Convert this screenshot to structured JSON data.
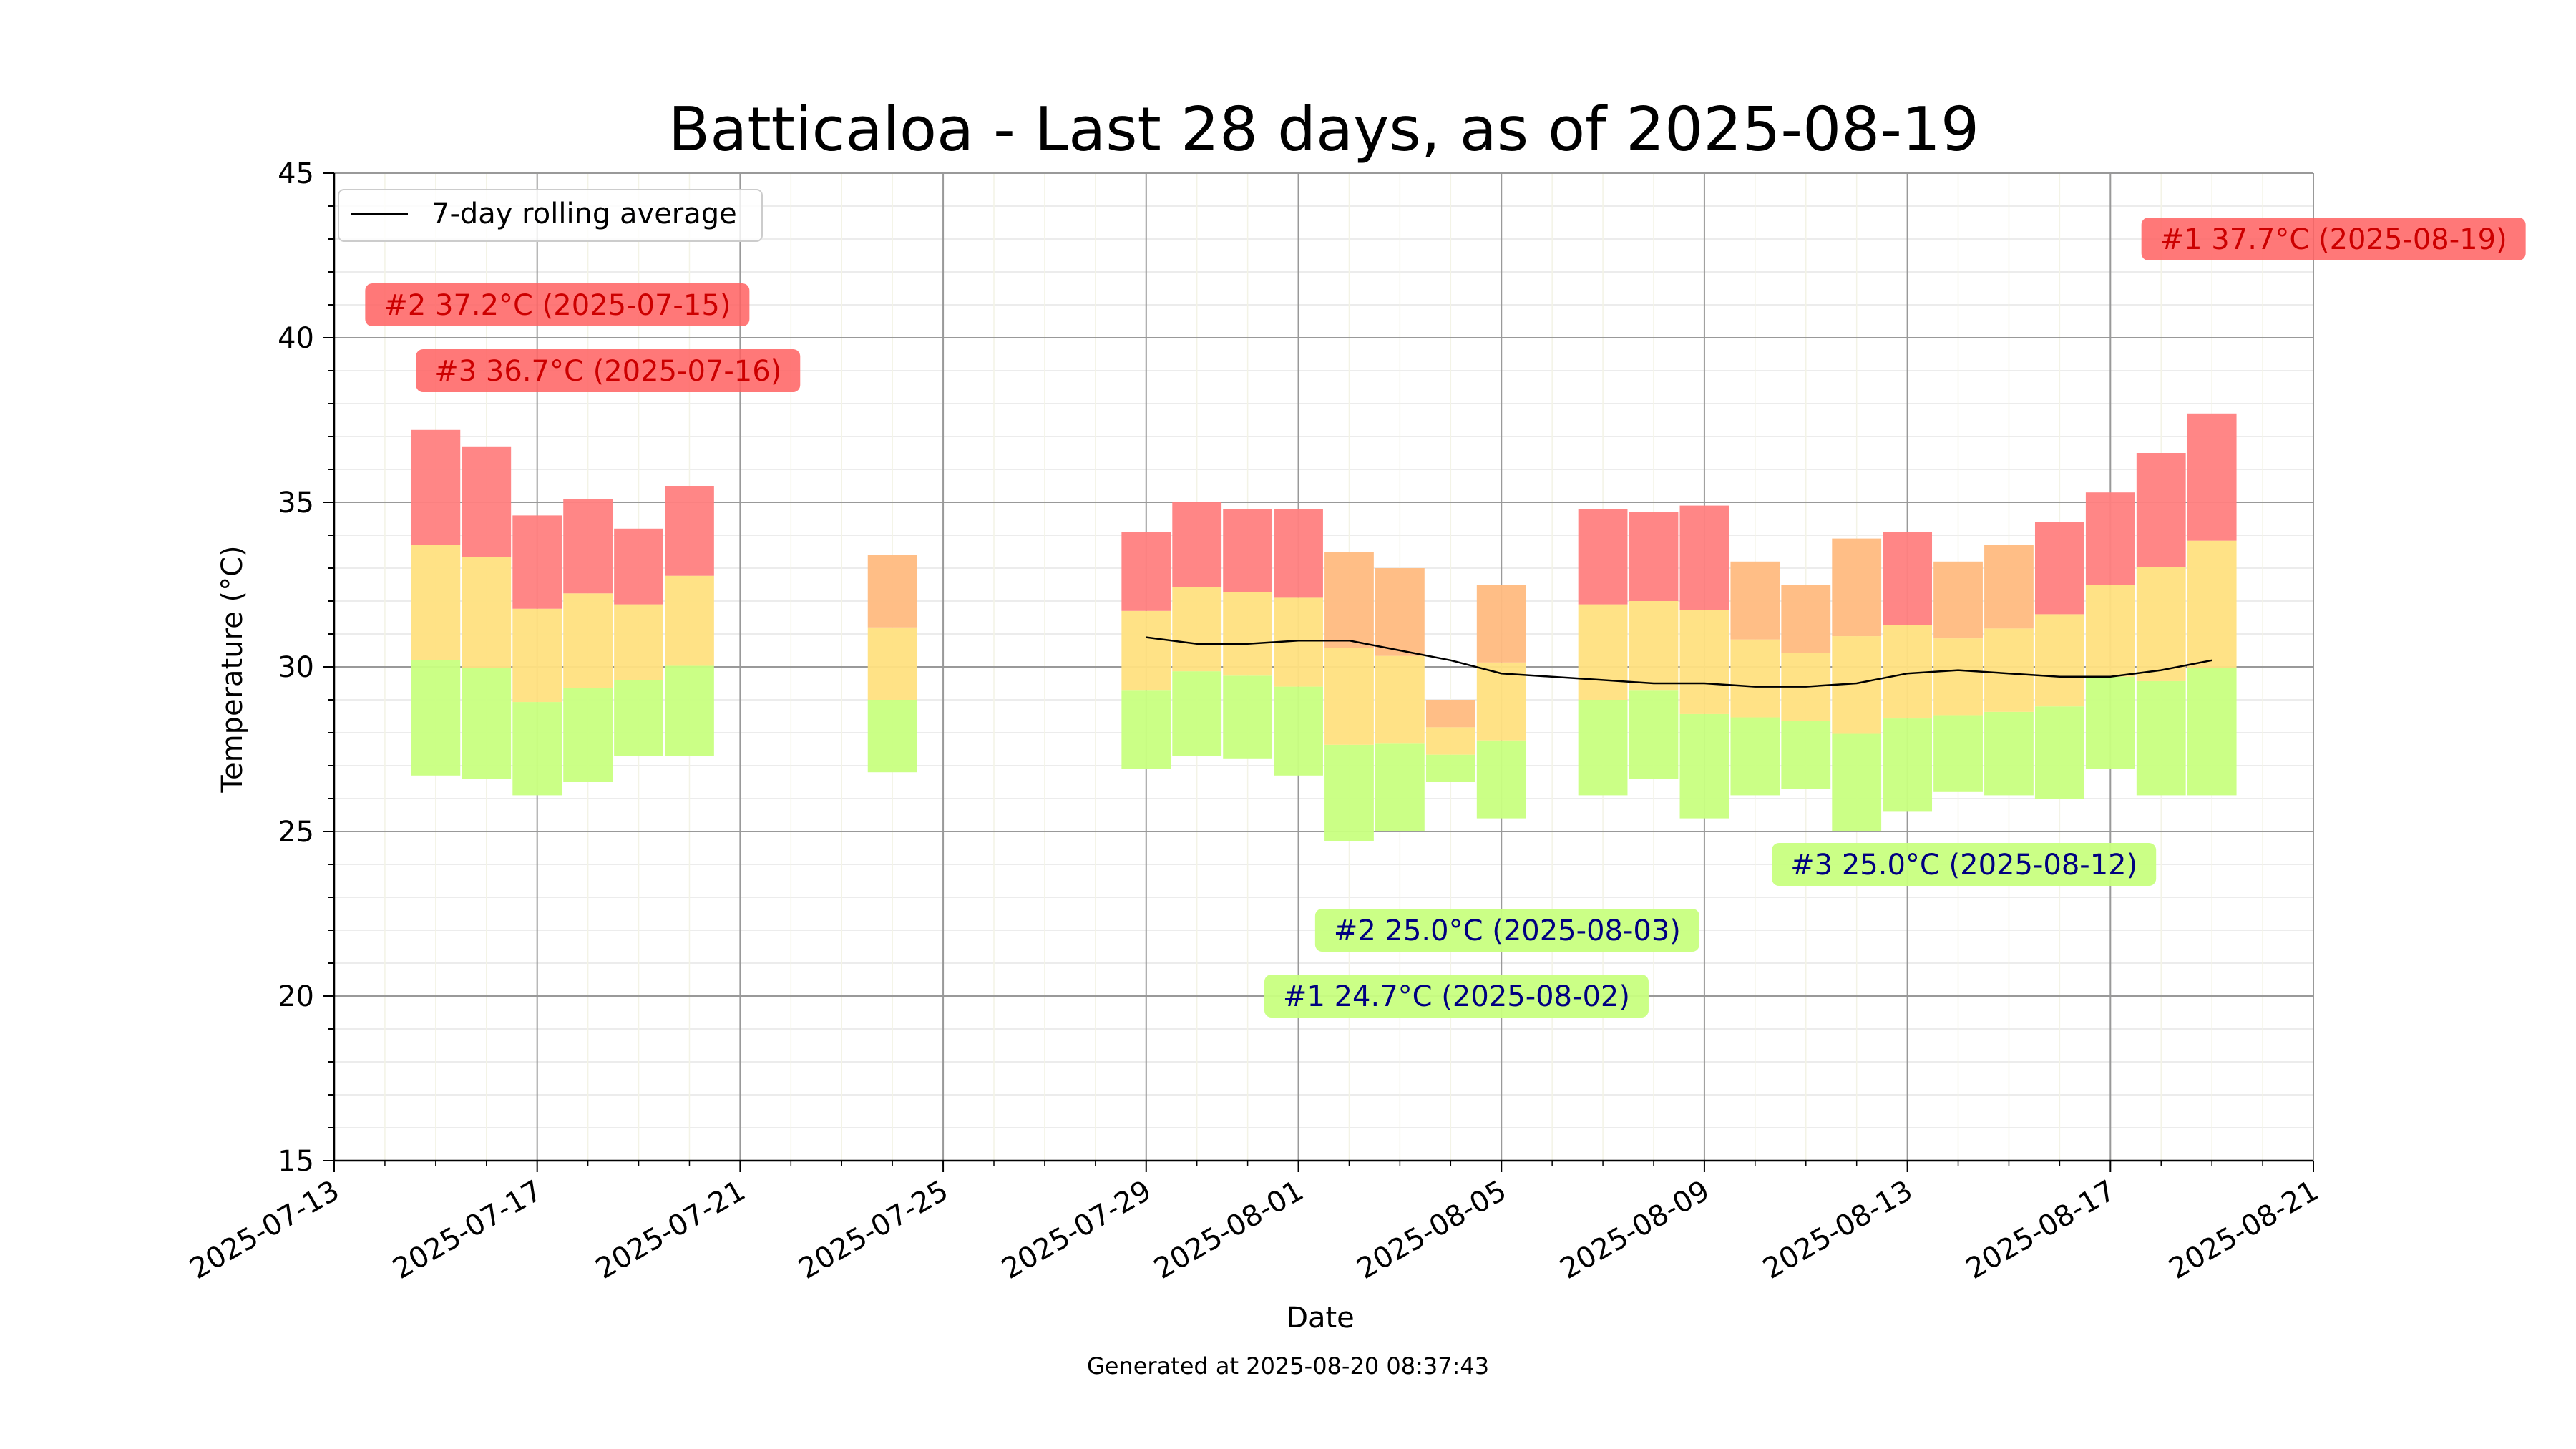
{
  "chart_data": {
    "type": "bar",
    "title": "Batticaloa - Last 28 days, as of 2025-08-19",
    "xlabel": "Date",
    "ylabel": "Temperature (°C)",
    "footer": "Generated at 2025-08-20 08:37:43",
    "x_range": [
      "2025-07-13",
      "2025-08-21"
    ],
    "ylim": [
      15,
      45
    ],
    "y_ticks": [
      "15",
      "20",
      "25",
      "30",
      "35",
      "40",
      "45"
    ],
    "x_ticks": [
      "2025-07-13",
      "2025-07-17",
      "2025-07-21",
      "2025-07-25",
      "2025-07-29",
      "2025-08-01",
      "2025-08-05",
      "2025-08-09",
      "2025-08-13",
      "2025-08-17",
      "2025-08-21"
    ],
    "grid": true,
    "legend": {
      "position": "top-left",
      "entries": [
        "7-day rolling average"
      ]
    },
    "colors": {
      "hot": "#ff8080",
      "warm": "#ffbb80",
      "mild": "#ffe080",
      "cool": "#eeff80",
      "cold": "#c8ff80",
      "avg_line": "#000000",
      "max_label_text": "#cc0000",
      "min_label_text": "#000080"
    },
    "days": [
      {
        "date": "2025-07-15",
        "min": 26.7,
        "max": 37.2
      },
      {
        "date": "2025-07-16",
        "min": 26.6,
        "max": 36.7
      },
      {
        "date": "2025-07-17",
        "min": 26.1,
        "max": 34.6
      },
      {
        "date": "2025-07-18",
        "min": 26.5,
        "max": 35.1
      },
      {
        "date": "2025-07-19",
        "min": 27.3,
        "max": 34.2
      },
      {
        "date": "2025-07-20",
        "min": 27.3,
        "max": 35.5
      },
      {
        "date": "2025-07-24",
        "min": 26.8,
        "max": 33.4
      },
      {
        "date": "2025-07-29",
        "min": 26.9,
        "max": 34.1
      },
      {
        "date": "2025-07-30",
        "min": 27.3,
        "max": 35.0
      },
      {
        "date": "2025-07-31",
        "min": 27.2,
        "max": 34.8
      },
      {
        "date": "2025-08-01",
        "min": 26.7,
        "max": 34.8
      },
      {
        "date": "2025-08-02",
        "min": 24.7,
        "max": 33.5
      },
      {
        "date": "2025-08-03",
        "min": 25.0,
        "max": 33.0
      },
      {
        "date": "2025-08-04",
        "min": 26.5,
        "max": 29.0
      },
      {
        "date": "2025-08-05",
        "min": 25.4,
        "max": 32.5
      },
      {
        "date": "2025-08-07",
        "min": 26.1,
        "max": 34.8
      },
      {
        "date": "2025-08-08",
        "min": 26.6,
        "max": 34.7
      },
      {
        "date": "2025-08-09",
        "min": 25.4,
        "max": 34.9
      },
      {
        "date": "2025-08-10",
        "min": 26.1,
        "max": 33.2
      },
      {
        "date": "2025-08-11",
        "min": 26.3,
        "max": 32.5
      },
      {
        "date": "2025-08-12",
        "min": 25.0,
        "max": 33.9
      },
      {
        "date": "2025-08-13",
        "min": 25.6,
        "max": 34.1
      },
      {
        "date": "2025-08-14",
        "min": 26.2,
        "max": 33.2
      },
      {
        "date": "2025-08-15",
        "min": 26.1,
        "max": 33.7
      },
      {
        "date": "2025-08-16",
        "min": 26.0,
        "max": 34.4
      },
      {
        "date": "2025-08-17",
        "min": 26.9,
        "max": 35.3
      },
      {
        "date": "2025-08-18",
        "min": 26.1,
        "max": 36.5
      },
      {
        "date": "2025-08-19",
        "min": 26.1,
        "max": 37.7
      }
    ],
    "rolling_average": [
      {
        "date": "2025-07-29",
        "value": 30.9
      },
      {
        "date": "2025-07-30",
        "value": 30.7
      },
      {
        "date": "2025-07-31",
        "value": 30.7
      },
      {
        "date": "2025-08-01",
        "value": 30.8
      },
      {
        "date": "2025-08-02",
        "value": 30.8
      },
      {
        "date": "2025-08-03",
        "value": 30.5
      },
      {
        "date": "2025-08-04",
        "value": 30.2
      },
      {
        "date": "2025-08-05",
        "value": 29.8
      },
      {
        "date": "2025-08-07",
        "value": 29.6
      },
      {
        "date": "2025-08-08",
        "value": 29.5
      },
      {
        "date": "2025-08-09",
        "value": 29.5
      },
      {
        "date": "2025-08-10",
        "value": 29.4
      },
      {
        "date": "2025-08-11",
        "value": 29.4
      },
      {
        "date": "2025-08-12",
        "value": 29.5
      },
      {
        "date": "2025-08-13",
        "value": 29.8
      },
      {
        "date": "2025-08-14",
        "value": 29.9
      },
      {
        "date": "2025-08-15",
        "value": 29.8
      },
      {
        "date": "2025-08-16",
        "value": 29.7
      },
      {
        "date": "2025-08-17",
        "value": 29.7
      },
      {
        "date": "2025-08-18",
        "value": 29.9
      },
      {
        "date": "2025-08-19",
        "value": 30.2
      }
    ],
    "annotations": [
      {
        "text": "#2 37.2°C (2025-07-15)",
        "kind": "max",
        "date": "2025-07-15",
        "y": 41.0
      },
      {
        "text": "#3 36.7°C (2025-07-16)",
        "kind": "max",
        "date": "2025-07-16",
        "y": 39.0
      },
      {
        "text": "#1 37.7°C (2025-08-19)",
        "kind": "max",
        "date": "2025-08-19",
        "y": 43.0
      },
      {
        "text": "#2 25.0°C (2025-08-03)",
        "kind": "min",
        "date": "2025-08-03",
        "y": 22.0
      },
      {
        "text": "#1 24.7°C (2025-08-02)",
        "kind": "min",
        "date": "2025-08-02",
        "y": 20.0
      },
      {
        "text": "#3 25.0°C (2025-08-12)",
        "kind": "min",
        "date": "2025-08-12",
        "y": 24.0
      }
    ]
  }
}
